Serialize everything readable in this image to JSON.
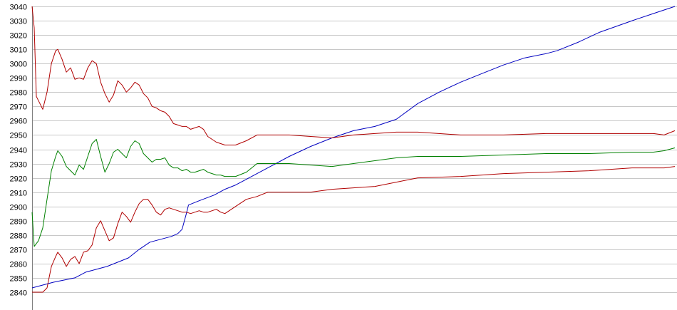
{
  "chart_data": {
    "type": "line",
    "title": "",
    "xlabel": "",
    "ylabel": "",
    "grid": true,
    "legend": "none",
    "ylim": [
      2840,
      3040
    ],
    "xlim": [
      0,
      300
    ],
    "y_ticks": [
      3040,
      3030,
      3020,
      3010,
      3000,
      2990,
      2980,
      2970,
      2960,
      2950,
      2940,
      2930,
      2920,
      2910,
      2900,
      2890,
      2880,
      2870,
      2860,
      2850,
      2840
    ],
    "series": [
      {
        "color": "#0000c0",
        "points": [
          [
            0,
            2843
          ],
          [
            5,
            2845
          ],
          [
            10,
            2847
          ],
          [
            20,
            2850
          ],
          [
            25,
            2854
          ],
          [
            30,
            2856
          ],
          [
            35,
            2858
          ],
          [
            40,
            2861
          ],
          [
            45,
            2864
          ],
          [
            50,
            2870
          ],
          [
            55,
            2875
          ],
          [
            60,
            2877
          ],
          [
            65,
            2879
          ],
          [
            68,
            2881
          ],
          [
            70,
            2884
          ],
          [
            72,
            2895
          ],
          [
            73,
            2901
          ],
          [
            78,
            2904
          ],
          [
            85,
            2908
          ],
          [
            90,
            2912
          ],
          [
            95,
            2915
          ],
          [
            100,
            2919
          ],
          [
            110,
            2927
          ],
          [
            120,
            2935
          ],
          [
            130,
            2942
          ],
          [
            140,
            2948
          ],
          [
            150,
            2953
          ],
          [
            160,
            2956
          ],
          [
            170,
            2961
          ],
          [
            180,
            2972
          ],
          [
            190,
            2980
          ],
          [
            200,
            2987
          ],
          [
            210,
            2993
          ],
          [
            220,
            2999
          ],
          [
            230,
            3004
          ],
          [
            240,
            3007
          ],
          [
            245,
            3009
          ],
          [
            255,
            3015
          ],
          [
            265,
            3022
          ],
          [
            280,
            3030
          ],
          [
            290,
            3035
          ],
          [
            300,
            3040
          ]
        ]
      },
      {
        "color": "#b00000",
        "points": [
          [
            0,
            3040
          ],
          [
            1,
            3025
          ],
          [
            2,
            2977
          ],
          [
            4,
            2971
          ],
          [
            5,
            2968
          ],
          [
            7,
            2980
          ],
          [
            9,
            3000
          ],
          [
            11,
            3009
          ],
          [
            12,
            3010
          ],
          [
            14,
            3003
          ],
          [
            16,
            2994
          ],
          [
            18,
            2997
          ],
          [
            20,
            2989
          ],
          [
            22,
            2990
          ],
          [
            24,
            2989
          ],
          [
            26,
            2997
          ],
          [
            28,
            3002
          ],
          [
            30,
            3000
          ],
          [
            32,
            2987
          ],
          [
            34,
            2979
          ],
          [
            36,
            2973
          ],
          [
            38,
            2978
          ],
          [
            40,
            2988
          ],
          [
            42,
            2985
          ],
          [
            44,
            2980
          ],
          [
            46,
            2983
          ],
          [
            48,
            2987
          ],
          [
            50,
            2985
          ],
          [
            52,
            2979
          ],
          [
            54,
            2976
          ],
          [
            56,
            2970
          ],
          [
            58,
            2969
          ],
          [
            60,
            2967
          ],
          [
            62,
            2966
          ],
          [
            64,
            2963
          ],
          [
            66,
            2958
          ],
          [
            68,
            2957
          ],
          [
            70,
            2956
          ],
          [
            72,
            2956
          ],
          [
            74,
            2954
          ],
          [
            76,
            2955
          ],
          [
            78,
            2956
          ],
          [
            80,
            2954
          ],
          [
            82,
            2949
          ],
          [
            84,
            2947
          ],
          [
            86,
            2945
          ],
          [
            88,
            2944
          ],
          [
            90,
            2943
          ],
          [
            95,
            2943
          ],
          [
            100,
            2946
          ],
          [
            105,
            2950
          ],
          [
            110,
            2950
          ],
          [
            120,
            2950
          ],
          [
            130,
            2949
          ],
          [
            140,
            2948
          ],
          [
            150,
            2950
          ],
          [
            160,
            2951
          ],
          [
            170,
            2952
          ],
          [
            180,
            2952
          ],
          [
            200,
            2950
          ],
          [
            220,
            2950
          ],
          [
            240,
            2951
          ],
          [
            260,
            2951
          ],
          [
            280,
            2951
          ],
          [
            290,
            2951
          ],
          [
            295,
            2950
          ],
          [
            300,
            2953
          ]
        ]
      },
      {
        "color": "#008000",
        "points": [
          [
            0,
            2896
          ],
          [
            1,
            2872
          ],
          [
            3,
            2876
          ],
          [
            5,
            2885
          ],
          [
            7,
            2905
          ],
          [
            9,
            2925
          ],
          [
            11,
            2935
          ],
          [
            12,
            2939
          ],
          [
            14,
            2935
          ],
          [
            16,
            2928
          ],
          [
            18,
            2925
          ],
          [
            20,
            2922
          ],
          [
            22,
            2929
          ],
          [
            24,
            2926
          ],
          [
            26,
            2935
          ],
          [
            28,
            2944
          ],
          [
            30,
            2947
          ],
          [
            32,
            2935
          ],
          [
            34,
            2924
          ],
          [
            36,
            2930
          ],
          [
            38,
            2938
          ],
          [
            40,
            2940
          ],
          [
            42,
            2937
          ],
          [
            44,
            2934
          ],
          [
            46,
            2942
          ],
          [
            48,
            2946
          ],
          [
            50,
            2944
          ],
          [
            52,
            2937
          ],
          [
            54,
            2934
          ],
          [
            56,
            2931
          ],
          [
            58,
            2933
          ],
          [
            60,
            2933
          ],
          [
            62,
            2934
          ],
          [
            64,
            2929
          ],
          [
            66,
            2927
          ],
          [
            68,
            2927
          ],
          [
            70,
            2925
          ],
          [
            72,
            2926
          ],
          [
            74,
            2924
          ],
          [
            76,
            2924
          ],
          [
            78,
            2925
          ],
          [
            80,
            2926
          ],
          [
            82,
            2924
          ],
          [
            84,
            2923
          ],
          [
            86,
            2922
          ],
          [
            88,
            2922
          ],
          [
            90,
            2921
          ],
          [
            95,
            2921
          ],
          [
            100,
            2924
          ],
          [
            105,
            2930
          ],
          [
            110,
            2930
          ],
          [
            120,
            2930
          ],
          [
            130,
            2929
          ],
          [
            140,
            2928
          ],
          [
            150,
            2930
          ],
          [
            160,
            2932
          ],
          [
            170,
            2934
          ],
          [
            180,
            2935
          ],
          [
            200,
            2935
          ],
          [
            220,
            2936
          ],
          [
            240,
            2937
          ],
          [
            260,
            2937
          ],
          [
            280,
            2938
          ],
          [
            290,
            2938
          ],
          [
            295,
            2939
          ],
          [
            300,
            2941
          ]
        ]
      },
      {
        "color": "#b00000",
        "points": [
          [
            0,
            2840
          ],
          [
            5,
            2840
          ],
          [
            7,
            2843
          ],
          [
            9,
            2858
          ],
          [
            11,
            2865
          ],
          [
            12,
            2868
          ],
          [
            14,
            2864
          ],
          [
            16,
            2858
          ],
          [
            18,
            2863
          ],
          [
            20,
            2865
          ],
          [
            22,
            2860
          ],
          [
            24,
            2868
          ],
          [
            26,
            2869
          ],
          [
            28,
            2873
          ],
          [
            30,
            2885
          ],
          [
            32,
            2890
          ],
          [
            34,
            2883
          ],
          [
            36,
            2876
          ],
          [
            38,
            2878
          ],
          [
            40,
            2888
          ],
          [
            42,
            2896
          ],
          [
            44,
            2893
          ],
          [
            46,
            2889
          ],
          [
            48,
            2896
          ],
          [
            50,
            2902
          ],
          [
            52,
            2905
          ],
          [
            54,
            2905
          ],
          [
            56,
            2901
          ],
          [
            58,
            2896
          ],
          [
            60,
            2894
          ],
          [
            62,
            2898
          ],
          [
            64,
            2899
          ],
          [
            66,
            2898
          ],
          [
            68,
            2897
          ],
          [
            70,
            2896
          ],
          [
            72,
            2896
          ],
          [
            74,
            2895
          ],
          [
            76,
            2896
          ],
          [
            78,
            2897
          ],
          [
            80,
            2896
          ],
          [
            82,
            2896
          ],
          [
            84,
            2897
          ],
          [
            86,
            2898
          ],
          [
            88,
            2896
          ],
          [
            90,
            2895
          ],
          [
            95,
            2900
          ],
          [
            100,
            2905
          ],
          [
            105,
            2907
          ],
          [
            110,
            2910
          ],
          [
            120,
            2910
          ],
          [
            130,
            2910
          ],
          [
            140,
            2912
          ],
          [
            150,
            2913
          ],
          [
            160,
            2914
          ],
          [
            170,
            2917
          ],
          [
            180,
            2920
          ],
          [
            200,
            2921
          ],
          [
            220,
            2923
          ],
          [
            240,
            2924
          ],
          [
            260,
            2925
          ],
          [
            280,
            2927
          ],
          [
            290,
            2927
          ],
          [
            295,
            2927
          ],
          [
            300,
            2928
          ]
        ]
      }
    ]
  }
}
